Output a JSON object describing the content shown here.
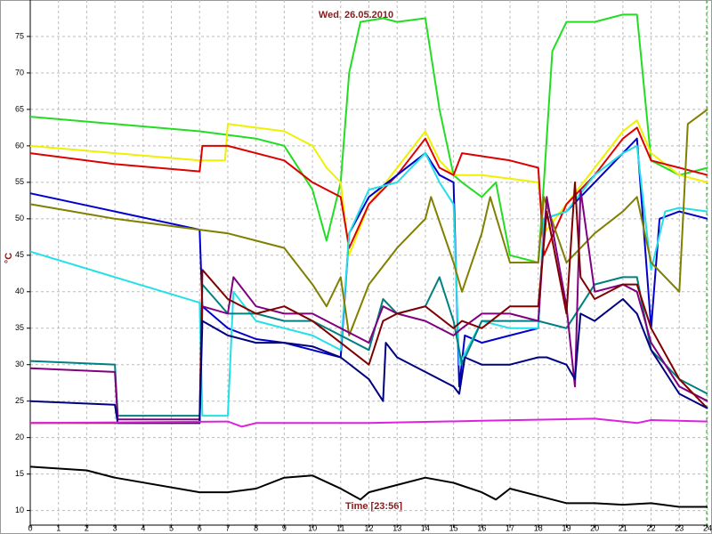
{
  "chart_data": {
    "type": "line",
    "title": "Wed, 26.05.2010",
    "x_label": "Time [23:56]",
    "y_label": "°C",
    "xlim": [
      0,
      24
    ],
    "ylim": [
      8,
      80
    ],
    "xticks": [
      0,
      1,
      2,
      3,
      4,
      5,
      6,
      7,
      8,
      9,
      10,
      11,
      12,
      13,
      14,
      15,
      16,
      17,
      18,
      19,
      20,
      21,
      22,
      23,
      24
    ],
    "yticks": [
      10,
      15,
      20,
      25,
      30,
      35,
      40,
      45,
      50,
      55,
      60,
      65,
      70,
      75
    ],
    "grid": true,
    "series": [
      {
        "color": "#22dd22",
        "x": [
          0,
          6,
          7,
          8,
          9,
          10,
          10.5,
          11,
          11.3,
          11.7,
          12.5,
          13,
          14,
          14.5,
          15,
          15.3,
          16,
          16.5,
          17,
          18,
          18.2,
          18.5,
          19,
          20,
          21,
          21.5,
          22,
          23,
          24
        ],
        "values": [
          64,
          62,
          61.5,
          61,
          60,
          54,
          47,
          55,
          70,
          77,
          77.5,
          77,
          77.5,
          65,
          56,
          55,
          53,
          55,
          45,
          44,
          55,
          73,
          77,
          77,
          78,
          78,
          58,
          56,
          57
        ]
      },
      {
        "color": "#f0f000",
        "x": [
          0,
          6,
          6.9,
          7,
          9,
          10,
          10.5,
          11,
          11.3,
          12,
          13,
          14,
          14.5,
          15,
          16,
          17,
          18,
          18.2,
          19,
          20,
          21,
          21.5,
          22,
          23,
          24
        ],
        "values": [
          60,
          58,
          58,
          63,
          62,
          60,
          57,
          55,
          45,
          52,
          57,
          62,
          58,
          56,
          56,
          55.5,
          55,
          48,
          52,
          57,
          62,
          63.5,
          59,
          56,
          55
        ]
      },
      {
        "color": "#dd0000",
        "x": [
          0,
          3,
          6,
          6.1,
          7,
          9,
          10,
          11,
          11.3,
          12,
          13,
          14,
          14.5,
          15,
          15.3,
          17,
          18,
          18.2,
          19,
          20,
          21,
          21.5,
          22,
          23,
          24
        ],
        "values": [
          59,
          57.5,
          56.5,
          60,
          60,
          58,
          55,
          53,
          46,
          52,
          56,
          61,
          57,
          56,
          59,
          58,
          57,
          45,
          52,
          56,
          61,
          62.5,
          58,
          57,
          56
        ]
      },
      {
        "color": "#0000cc",
        "x": [
          0,
          3,
          6,
          6.1,
          7,
          8,
          9,
          10,
          11,
          11.3,
          12,
          13,
          14,
          14.5,
          15,
          15.2,
          15.4,
          16,
          17,
          18,
          18.2,
          19,
          20,
          21,
          21.5,
          22,
          22.3,
          23,
          24
        ],
        "values": [
          53.5,
          51,
          48.5,
          38,
          35,
          33.5,
          33,
          32,
          31,
          48,
          53,
          56,
          59,
          56,
          55,
          27,
          34,
          33,
          34,
          35,
          50,
          51,
          55,
          59,
          61,
          35,
          50,
          51,
          50
        ]
      },
      {
        "color": "#22e0e8",
        "x": [
          0,
          3,
          6,
          6.1,
          7,
          7.2,
          8,
          9,
          10,
          11,
          11.3,
          12,
          13,
          14,
          14.5,
          15,
          15.2,
          16,
          17,
          18,
          18.2,
          19,
          20,
          21,
          21.5,
          22,
          22.5,
          23,
          24
        ],
        "values": [
          45.5,
          42,
          38.5,
          23,
          23,
          40,
          36,
          35,
          34,
          32,
          48,
          54,
          55,
          59,
          55,
          52,
          30,
          36,
          35,
          35,
          50,
          51,
          56,
          59,
          60,
          43,
          51,
          51.5,
          51
        ]
      },
      {
        "color": "#808000",
        "x": [
          0,
          3,
          6,
          7,
          8,
          9,
          10,
          10.5,
          11,
          11.3,
          12,
          13,
          14,
          14.2,
          15,
          15.3,
          16,
          16.3,
          17,
          18,
          18.2,
          19,
          20,
          21,
          21.5,
          22,
          23,
          23.3,
          24
        ],
        "values": [
          52,
          50,
          48.5,
          48,
          47,
          46,
          41,
          38,
          42,
          34,
          41,
          46,
          50,
          53,
          44,
          40,
          48,
          53,
          44,
          44,
          53,
          44,
          48,
          51,
          53,
          44,
          40,
          63,
          65
        ]
      },
      {
        "color": "#008080",
        "x": [
          0,
          3,
          3.1,
          6,
          6.1,
          7,
          8,
          9,
          10,
          11,
          12,
          12.5,
          13,
          14,
          14.5,
          15,
          15.3,
          16,
          17,
          18,
          19,
          20,
          21,
          21.5,
          22,
          23,
          24
        ],
        "values": [
          30.5,
          30,
          23,
          23,
          41,
          37,
          37,
          36,
          36,
          34,
          32,
          39,
          37,
          38,
          42,
          36,
          30,
          36,
          36,
          36,
          35,
          41,
          42,
          42,
          32,
          28,
          26
        ]
      },
      {
        "color": "#800080",
        "x": [
          0,
          3,
          3.1,
          6,
          6.1,
          7,
          7.2,
          8,
          9,
          10,
          11,
          12,
          12.5,
          13,
          14,
          15,
          15.3,
          16,
          17,
          18,
          18.3,
          19,
          19.3,
          19.5,
          20,
          21,
          21.5,
          22,
          23,
          24
        ],
        "values": [
          29.5,
          29,
          22.5,
          22.5,
          38,
          37,
          42,
          38,
          37,
          37,
          35,
          33,
          38,
          37,
          36,
          34,
          35,
          37,
          37,
          36,
          53,
          38,
          27,
          54,
          40,
          41,
          40,
          33,
          27,
          25
        ]
      },
      {
        "color": "#800000",
        "x": [
          0,
          6,
          6.1,
          7,
          8,
          9,
          10,
          11,
          12,
          12.5,
          13,
          14,
          15,
          15.3,
          16,
          17,
          18,
          18.3,
          19,
          19.3,
          19.5,
          20,
          21,
          21.5,
          22,
          23,
          24
        ],
        "values": [
          22,
          22,
          43,
          39,
          37,
          38,
          36,
          33,
          30,
          36,
          37,
          38,
          35,
          36,
          35,
          38,
          38,
          51,
          37,
          55,
          42,
          39,
          41,
          41,
          35,
          28,
          24
        ]
      },
      {
        "color": "#000080",
        "x": [
          0,
          3,
          3.1,
          6,
          6.1,
          7,
          8,
          9,
          10,
          11,
          12,
          12.5,
          12.6,
          13,
          14,
          15,
          15.2,
          15.4,
          16,
          17,
          18,
          18.3,
          19,
          19.3,
          19.5,
          20,
          21,
          21.5,
          22,
          23,
          24
        ],
        "values": [
          25,
          24.5,
          22,
          22,
          36,
          34,
          33,
          33,
          32.5,
          31,
          28,
          25,
          33,
          31,
          29,
          27,
          26,
          31,
          30,
          30,
          31,
          31,
          30,
          28,
          37,
          36,
          39,
          37,
          32,
          26,
          24
        ]
      },
      {
        "color": "#dd22dd",
        "x": [
          0,
          7,
          7.5,
          8,
          12,
          16,
          20,
          21.5,
          22,
          24
        ],
        "values": [
          22,
          22.2,
          21.5,
          22,
          22,
          22.3,
          22.6,
          22,
          22.4,
          22.2
        ]
      },
      {
        "color": "#000000",
        "x": [
          0,
          2,
          3,
          6,
          7,
          8,
          9,
          10,
          11,
          11.7,
          12,
          13,
          14,
          15,
          16,
          16.5,
          17,
          18,
          19,
          20,
          21,
          22,
          23,
          24
        ],
        "values": [
          16,
          15.5,
          14.5,
          12.5,
          12.5,
          13,
          14.5,
          14.8,
          13,
          11.5,
          12.5,
          13.5,
          14.5,
          13.8,
          12.5,
          11.5,
          13,
          12,
          11,
          11,
          10.8,
          11,
          10.5,
          10.5
        ]
      }
    ]
  }
}
